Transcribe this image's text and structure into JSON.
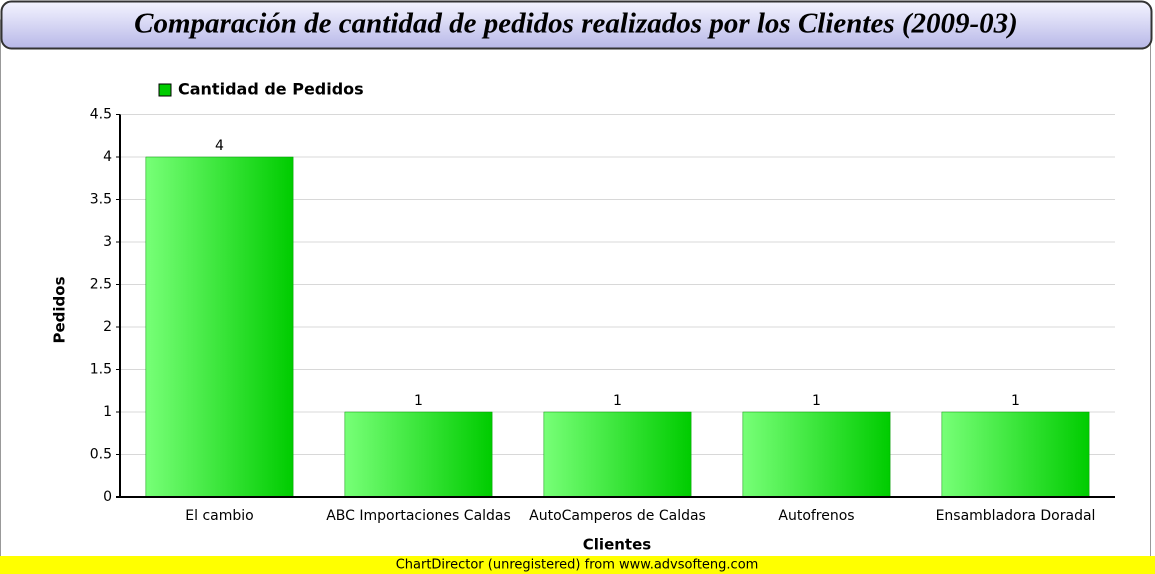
{
  "chart_data": {
    "type": "bar",
    "title": "Comparación de cantidad de pedidos realizados por los Clientes (2009-03)",
    "categories": [
      "El cambio",
      "ABC Importaciones Caldas",
      "AutoCamperos de Caldas",
      "Autofrenos",
      "Ensambladora Doradal"
    ],
    "series": [
      {
        "name": "Cantidad de Pedidos",
        "color": "#00cc00",
        "values": [
          4,
          1,
          1,
          1,
          1
        ]
      }
    ],
    "x_label": "Clientes",
    "y_label": "Pedidos",
    "ylim": [
      0,
      4.5
    ],
    "yticks": [
      0,
      0.5,
      1,
      1.5,
      2,
      2.5,
      3,
      3.5,
      4,
      4.5
    ],
    "grid": true,
    "legend": "top-left",
    "footer": "ChartDirector (unregistered) from www.advsofteng.com"
  }
}
